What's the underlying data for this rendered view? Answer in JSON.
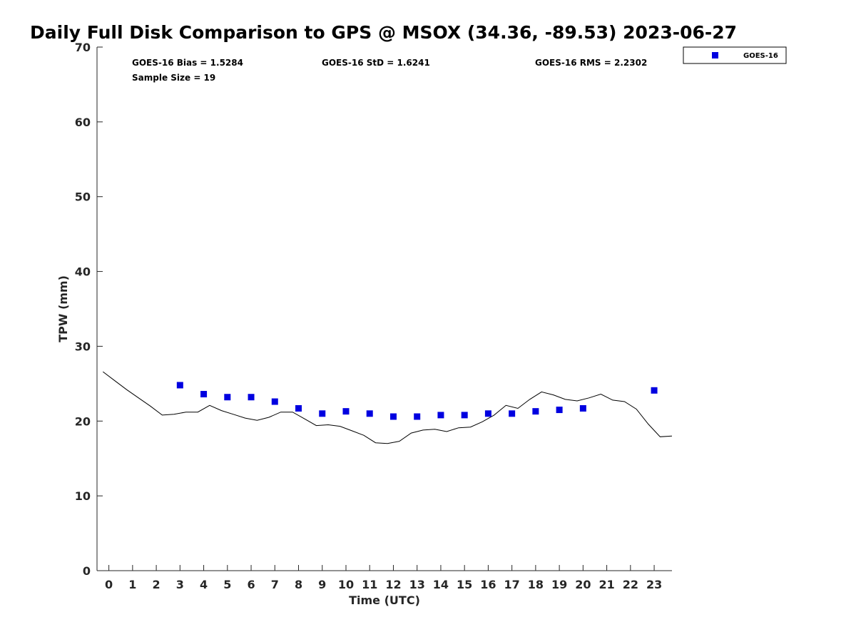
{
  "chart_data": {
    "type": "scatter",
    "title": "Daily Full Disk Comparison to GPS @ MSOX (34.36, -89.53) 2023-06-27",
    "xlabel": "Time (UTC)",
    "ylabel": "TPW (mm)",
    "xlim": [
      -0.5,
      23.75
    ],
    "ylim": [
      0,
      70
    ],
    "x_ticks": [
      0,
      1,
      2,
      3,
      4,
      5,
      6,
      7,
      8,
      9,
      10,
      11,
      12,
      13,
      14,
      15,
      16,
      17,
      18,
      19,
      20,
      21,
      22,
      23
    ],
    "y_ticks": [
      0,
      10,
      20,
      30,
      40,
      50,
      60,
      70
    ],
    "grid": false,
    "legend_position": "top-right",
    "stats": {
      "bias": "GOES-16 Bias = 1.5284",
      "std": "GOES-16 StD = 1.6241",
      "rms": "GOES-16 RMS = 2.2302",
      "sample_size": "Sample Size = 19"
    },
    "series": [
      {
        "name": "GOES-16",
        "kind": "scatter",
        "marker": "square",
        "color": "#0000e0",
        "x": [
          3,
          4,
          5,
          6,
          7,
          8,
          9,
          10,
          11,
          12,
          13,
          14,
          15,
          16,
          17,
          18,
          19,
          20,
          23
        ],
        "y": [
          24.8,
          23.6,
          23.2,
          23.2,
          22.6,
          21.7,
          21.0,
          21.3,
          21.0,
          20.6,
          20.6,
          20.8,
          20.8,
          21.0,
          21.0,
          21.3,
          21.5,
          21.7,
          24.1
        ]
      },
      {
        "kind": "line",
        "color": "#000000",
        "x": [
          -0.25,
          0.25,
          0.75,
          1.25,
          1.75,
          2.25,
          2.75,
          3.25,
          3.75,
          4.25,
          4.75,
          5.25,
          5.75,
          6.25,
          6.75,
          7.25,
          7.75,
          8.25,
          8.75,
          9.25,
          9.75,
          10.25,
          10.75,
          11.25,
          11.75,
          12.25,
          12.75,
          13.25,
          13.75,
          14.25,
          14.75,
          15.25,
          15.75,
          16.25,
          16.75,
          17.25,
          17.75,
          18.25,
          18.75,
          19.25,
          19.75,
          20.25,
          20.75,
          21.25,
          21.75,
          22.25,
          22.75,
          23.25,
          23.75
        ],
        "y": [
          26.6,
          25.4,
          24.2,
          23.1,
          22.0,
          20.8,
          20.9,
          21.2,
          21.2,
          22.1,
          21.4,
          20.9,
          20.4,
          20.1,
          20.5,
          21.2,
          21.2,
          20.3,
          19.4,
          19.5,
          19.3,
          18.7,
          18.1,
          17.1,
          17.0,
          17.3,
          18.4,
          18.8,
          18.9,
          18.6,
          19.1,
          19.2,
          19.9,
          20.8,
          22.1,
          21.7,
          22.9,
          23.9,
          23.5,
          22.9,
          22.7,
          23.1,
          23.6,
          22.8,
          22.6,
          21.6,
          19.6,
          17.9,
          18.0
        ]
      }
    ]
  }
}
